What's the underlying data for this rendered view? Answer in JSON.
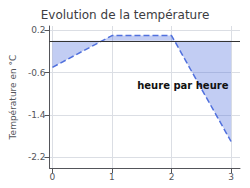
{
  "chart_data": {
    "type": "line",
    "title": "Evolution de la température",
    "ylabel": "Température en °C",
    "annotation": "heure par heure",
    "x": [
      0,
      1,
      2,
      3
    ],
    "values": [
      -0.5,
      0.1,
      0.1,
      -1.9
    ],
    "xlim": [
      -0.05,
      3.15
    ],
    "xticks": [
      0,
      1,
      2,
      3
    ],
    "ylim": [
      -2.4,
      0.28
    ],
    "yticks": [
      0.2,
      -0.6,
      -1.4,
      -2.2
    ],
    "hline": 0,
    "line_style": "dashed",
    "grid": true
  }
}
